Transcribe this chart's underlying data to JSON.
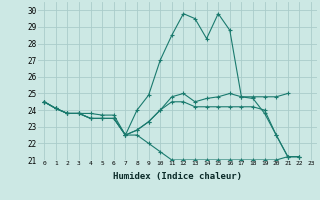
{
  "title": "",
  "xlabel": "Humidex (Indice chaleur)",
  "ylabel": "",
  "background_color": "#cce8e4",
  "grid_color": "#aaccca",
  "line_color": "#1a7a6e",
  "xlim": [
    -0.5,
    23.5
  ],
  "ylim": [
    21,
    30.5
  ],
  "yticks": [
    21,
    22,
    23,
    24,
    25,
    26,
    27,
    28,
    29,
    30
  ],
  "xticks": [
    0,
    1,
    2,
    3,
    4,
    5,
    6,
    7,
    8,
    9,
    10,
    11,
    12,
    13,
    14,
    15,
    16,
    17,
    18,
    19,
    20,
    21,
    22,
    23
  ],
  "series": [
    [
      24.5,
      24.1,
      23.8,
      23.8,
      23.8,
      23.7,
      23.7,
      22.5,
      24.0,
      24.9,
      27.0,
      28.5,
      29.8,
      29.5,
      28.3,
      29.8,
      28.8,
      24.8,
      24.7,
      23.8,
      22.5,
      21.2,
      21.2,
      null
    ],
    [
      24.5,
      24.1,
      23.8,
      23.8,
      23.5,
      23.5,
      23.5,
      22.5,
      22.8,
      23.3,
      24.0,
      24.8,
      25.0,
      24.5,
      24.7,
      24.8,
      25.0,
      24.8,
      24.8,
      24.8,
      24.8,
      25.0,
      null,
      null
    ],
    [
      24.5,
      24.1,
      23.8,
      23.8,
      23.5,
      23.5,
      23.5,
      22.5,
      22.8,
      23.3,
      24.0,
      24.5,
      24.5,
      24.2,
      24.2,
      24.2,
      24.2,
      24.2,
      24.2,
      24.0,
      22.5,
      21.2,
      21.2,
      null
    ],
    [
      24.5,
      24.1,
      23.8,
      23.8,
      23.5,
      23.5,
      23.5,
      22.5,
      22.5,
      22.0,
      21.5,
      21.0,
      21.0,
      21.0,
      21.0,
      21.0,
      21.0,
      21.0,
      21.0,
      21.0,
      21.0,
      21.2,
      21.2,
      null
    ]
  ]
}
